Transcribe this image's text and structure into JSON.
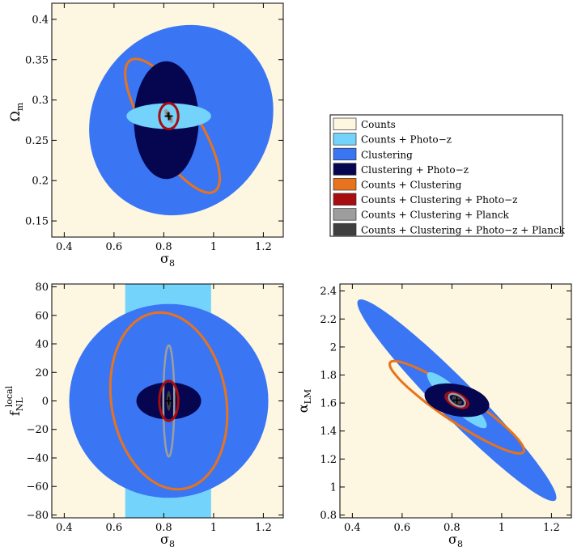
{
  "colors": {
    "counts": "#fdf6e1",
    "counts_photoz": "#73d3fb",
    "clustering": "#3a76f4",
    "clustering_photoz": "#05064f",
    "counts_clustering": "#e8731c",
    "counts_clustering_photoz": "#a80d10",
    "counts_clustering_planck": "#9d9d9d",
    "all_planck": "#3f3f3f"
  },
  "legend": {
    "entries": [
      "Counts",
      "Counts + Photo−z",
      "Clustering",
      "Clustering + Photo−z",
      "Counts + Clustering",
      "Counts + Clustering + Photo−z",
      "Counts + Clustering + Planck",
      "Counts + Clustering + Photo−z + Planck"
    ]
  },
  "chart_data": [
    {
      "type": "contour",
      "xlabel": "σ",
      "xlabel_sub": "8",
      "ylabel": "Ω",
      "ylabel_sub": "m",
      "xlim": [
        0.35,
        1.28
      ],
      "ylim": [
        0.13,
        0.42
      ],
      "xticks": [
        "0.4",
        "0.6",
        "0.8",
        "1",
        "1.2"
      ],
      "yticks": [
        "0.15",
        "0.2",
        "0.25",
        "0.3",
        "0.35",
        "0.4"
      ],
      "fiducial": [
        0.82,
        0.28
      ],
      "ellipses": [
        {
          "series": "Clustering",
          "cx": 0.87,
          "cy": 0.275,
          "sx": 0.37,
          "sy": 0.118,
          "rho": 0.1
        },
        {
          "series": "Counts + Clustering",
          "cx": 0.835,
          "cy": 0.268,
          "sx": 0.19,
          "sy": 0.083,
          "rho": -0.78
        },
        {
          "series": "Clustering + Photo−z",
          "cx": 0.81,
          "cy": 0.275,
          "sx": 0.13,
          "sy": 0.073,
          "rho": 0.0
        },
        {
          "series": "Counts + Photo−z",
          "cx": 0.82,
          "cy": 0.28,
          "sx": 0.17,
          "sy": 0.016,
          "rho": 0.0
        },
        {
          "series": "Counts + Clustering + Photo−z",
          "cx": 0.82,
          "cy": 0.28,
          "sx": 0.038,
          "sy": 0.016,
          "rho": 0.0
        },
        {
          "series": "Counts + Clustering + Planck",
          "cx": 0.82,
          "cy": 0.28,
          "sx": 0.014,
          "sy": 0.0075,
          "rho": -0.85
        },
        {
          "series": "Counts + Clustering + Photo−z + Planck",
          "cx": 0.82,
          "cy": 0.28,
          "sx": 0.01,
          "sy": 0.005,
          "rho": -0.85
        }
      ]
    },
    {
      "type": "contour",
      "xlabel": "σ",
      "xlabel_sub": "8",
      "ylabel": "f",
      "ylabel_sub": "NL",
      "ylabel_sup": "local",
      "xlim": [
        0.35,
        1.28
      ],
      "ylim": [
        -82,
        82
      ],
      "xticks": [
        "0.4",
        "0.6",
        "0.8",
        "1",
        "1.2"
      ],
      "yticks": [
        "−80",
        "−60",
        "−40",
        "−20",
        "0",
        "20",
        "40",
        "60",
        "80"
      ],
      "fiducial": [
        0.82,
        0
      ],
      "band": {
        "series": "Counts + Photo−z",
        "x0": 0.645,
        "x1": 0.99
      },
      "ellipses": [
        {
          "series": "Clustering",
          "cx": 0.82,
          "cy": 0,
          "sx": 0.4,
          "sy": 68,
          "rho": 0.0
        },
        {
          "series": "Counts + Clustering",
          "cx": 0.82,
          "cy": 0,
          "sx": 0.235,
          "sy": 62,
          "rho": -0.15
        },
        {
          "series": "Clustering + Photo−z",
          "cx": 0.82,
          "cy": 0,
          "sx": 0.13,
          "sy": 13,
          "rho": 0.0
        },
        {
          "series": "Counts + Clustering + Planck",
          "cx": 0.82,
          "cy": 0,
          "sx": 0.022,
          "sy": 39,
          "rho": 0.0
        },
        {
          "series": "Counts + Clustering + Photo−z",
          "cx": 0.82,
          "cy": 0,
          "sx": 0.038,
          "sy": 14,
          "rho": 0.0
        },
        {
          "series": "Counts + Clustering + Photo−z + Planck",
          "cx": 0.82,
          "cy": 0,
          "sx": 0.009,
          "sy": 7,
          "rho": 0.0
        }
      ]
    },
    {
      "type": "contour",
      "xlabel": "σ",
      "xlabel_sub": "8",
      "ylabel": "α",
      "ylabel_sub": "LM",
      "xlim": [
        0.35,
        1.28
      ],
      "ylim": [
        0.78,
        2.45
      ],
      "xticks": [
        "0.4",
        "0.6",
        "0.8",
        "1",
        "1.2"
      ],
      "yticks": [
        "0.8",
        "1",
        "1.2",
        "1.4",
        "1.6",
        "1.8",
        "2",
        "2.2",
        "2.4"
      ],
      "fiducial": [
        0.82,
        1.62
      ],
      "ellipses": [
        {
          "series": "Clustering",
          "cx": 0.82,
          "cy": 1.62,
          "sx": 0.4,
          "sy": 0.72,
          "rho": -0.965
        },
        {
          "series": "Counts + Clustering",
          "cx": 0.82,
          "cy": 1.57,
          "sx": 0.27,
          "sy": 0.33,
          "rho": -0.93
        },
        {
          "series": "Counts + Photo−z",
          "cx": 0.82,
          "cy": 1.62,
          "sx": 0.12,
          "sy": 0.2,
          "rho": -0.9
        },
        {
          "series": "Clustering + Photo−z",
          "cx": 0.82,
          "cy": 1.62,
          "sx": 0.13,
          "sy": 0.12,
          "rho": -0.3
        },
        {
          "series": "Counts + Clustering + Photo−z",
          "cx": 0.82,
          "cy": 1.62,
          "sx": 0.045,
          "sy": 0.055,
          "rho": -0.5
        },
        {
          "series": "Counts + Clustering + Planck",
          "cx": 0.82,
          "cy": 1.62,
          "sx": 0.033,
          "sy": 0.045,
          "rho": -0.5
        },
        {
          "series": "Counts + Clustering + Photo−z + Planck",
          "cx": 0.82,
          "cy": 1.62,
          "sx": 0.02,
          "sy": 0.03,
          "rho": -0.5
        }
      ]
    }
  ]
}
